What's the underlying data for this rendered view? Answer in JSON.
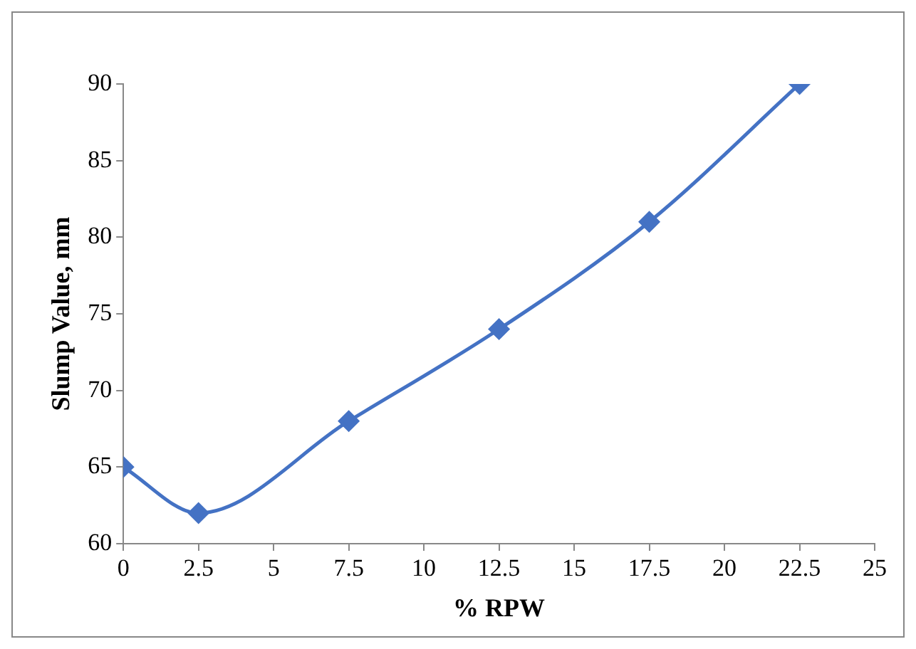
{
  "chart_data": {
    "type": "line",
    "xlabel": "% RPW",
    "ylabel": "Slump Value, mm",
    "x": [
      0,
      2.5,
      7.5,
      12.5,
      17.5,
      22.5
    ],
    "series": [
      {
        "color": "#4472c4",
        "values": [
          65,
          62,
          68,
          74,
          81,
          90
        ]
      }
    ],
    "xlim": [
      0,
      25
    ],
    "xticks": [
      0,
      2.5,
      5,
      7.5,
      10,
      12.5,
      15,
      17.5,
      20,
      22.5,
      25
    ],
    "ylim": [
      60,
      90
    ],
    "yticks": [
      60,
      65,
      70,
      75,
      80,
      85,
      90
    ],
    "grid": false,
    "legend": false,
    "marker": "diamond",
    "line_style": "solid"
  }
}
